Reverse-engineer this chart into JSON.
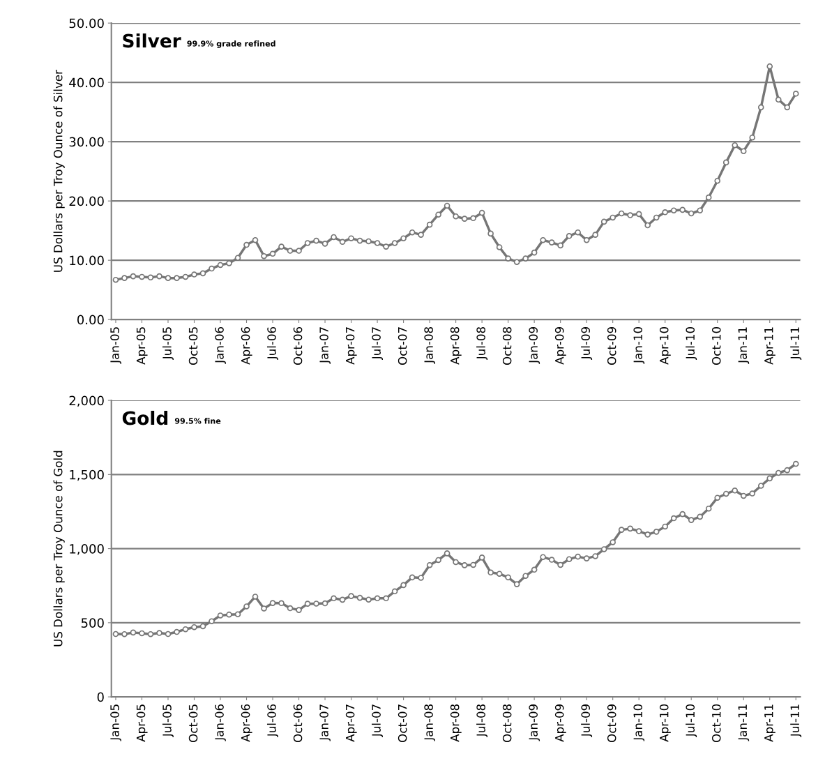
{
  "chart_data": [
    {
      "type": "line",
      "title": "Silver",
      "subtitle": "99.9% grade refined",
      "ylabel": "US Dollars per Troy Ounce of Silver",
      "categories": [
        "Jan-05",
        null,
        null,
        "Apr-05",
        null,
        null,
        "Jul-05",
        null,
        null,
        "Oct-05",
        null,
        null,
        "Jan-06",
        null,
        null,
        "Apr-06",
        null,
        null,
        "Jul-06",
        null,
        null,
        "Oct-06",
        null,
        null,
        "Jan-07",
        null,
        null,
        "Apr-07",
        null,
        null,
        "Jul-07",
        null,
        null,
        "Oct-07",
        null,
        null,
        "Jan-08",
        null,
        null,
        "Apr-08",
        null,
        null,
        "Jul-08",
        null,
        null,
        "Oct-08",
        null,
        null,
        "Jan-09",
        null,
        null,
        "Apr-09",
        null,
        null,
        "Jul-09",
        null,
        null,
        "Oct-09",
        null,
        null,
        "Jan-10",
        null,
        null,
        "Apr-10",
        null,
        null,
        "Jul-10",
        null,
        null,
        "Oct-10",
        null,
        null,
        "Jan-11",
        null,
        null,
        "Apr-11",
        null,
        null,
        "Jul-11"
      ],
      "series": [
        {
          "color": "#767676",
          "values": [
            6.7,
            7.0,
            7.3,
            7.2,
            7.1,
            7.3,
            7.0,
            7.0,
            7.2,
            7.6,
            7.8,
            8.6,
            9.2,
            9.5,
            10.4,
            12.6,
            13.4,
            10.7,
            11.1,
            12.3,
            11.6,
            11.6,
            12.9,
            13.3,
            12.8,
            13.9,
            13.1,
            13.7,
            13.3,
            13.2,
            12.9,
            12.3,
            12.9,
            13.7,
            14.7,
            14.3,
            16.0,
            17.7,
            19.2,
            17.4,
            17.0,
            17.1,
            18.0,
            14.5,
            12.2,
            10.3,
            9.7,
            10.3,
            11.3,
            13.4,
            13.0,
            12.5,
            14.1,
            14.7,
            13.4,
            14.3,
            16.5,
            17.2,
            17.9,
            17.6,
            17.8,
            15.9,
            17.2,
            18.1,
            18.4,
            18.5,
            17.9,
            18.4,
            20.6,
            23.4,
            26.5,
            29.4,
            28.4,
            30.7,
            35.8,
            42.7,
            37.1,
            35.8,
            38.1
          ]
        }
      ],
      "ylim": [
        0,
        50
      ],
      "yticks": [
        {
          "value": 0,
          "label": "0.00"
        },
        {
          "value": 10,
          "label": "10.00"
        },
        {
          "value": 20,
          "label": "20.00"
        },
        {
          "value": 30,
          "label": "30.00"
        },
        {
          "value": 40,
          "label": "40.00"
        },
        {
          "value": 50,
          "label": "50.00"
        }
      ],
      "grid": "y",
      "marker": "circle",
      "line_style": "solid"
    },
    {
      "type": "line",
      "title": "Gold",
      "subtitle": "99.5% fine",
      "ylabel": "US Dollars per Troy Ounce of Gold",
      "categories": [
        "Jan-05",
        null,
        null,
        "Apr-05",
        null,
        null,
        "Jul-05",
        null,
        null,
        "Oct-05",
        null,
        null,
        "Jan-06",
        null,
        null,
        "Apr-06",
        null,
        null,
        "Jul-06",
        null,
        null,
        "Oct-06",
        null,
        null,
        "Jan-07",
        null,
        null,
        "Apr-07",
        null,
        null,
        "Jul-07",
        null,
        null,
        "Oct-07",
        null,
        null,
        "Jan-08",
        null,
        null,
        "Apr-08",
        null,
        null,
        "Jul-08",
        null,
        null,
        "Oct-08",
        null,
        null,
        "Jan-09",
        null,
        null,
        "Apr-09",
        null,
        null,
        "Jul-09",
        null,
        null,
        "Oct-09",
        null,
        null,
        "Jan-10",
        null,
        null,
        "Apr-10",
        null,
        null,
        "Jul-10",
        null,
        null,
        "Oct-10",
        null,
        null,
        "Jan-11",
        null,
        null,
        "Apr-11",
        null,
        null,
        "Jul-11"
      ],
      "series": [
        {
          "color": "#767676",
          "values": [
            424,
            423,
            434,
            429,
            423,
            431,
            424,
            438,
            456,
            470,
            476,
            510,
            549,
            555,
            557,
            610,
            676,
            596,
            633,
            632,
            598,
            586,
            628,
            629,
            631,
            665,
            655,
            680,
            668,
            656,
            665,
            665,
            712,
            754,
            806,
            803,
            889,
            923,
            968,
            909,
            888,
            890,
            940,
            839,
            830,
            806,
            760,
            816,
            858,
            943,
            925,
            890,
            929,
            946,
            934,
            949,
            996,
            1043,
            1127,
            1135,
            1118,
            1095,
            1114,
            1149,
            1205,
            1233,
            1193,
            1215,
            1270,
            1343,
            1370,
            1392,
            1356,
            1372,
            1424,
            1474,
            1511,
            1529,
            1572
          ]
        }
      ],
      "ylim": [
        0,
        2000
      ],
      "yticks": [
        0,
        500,
        {
          "value": 1000,
          "label": "1,000"
        },
        {
          "value": 1500,
          "label": "1,500"
        },
        {
          "value": 2000,
          "label": "2,000"
        }
      ],
      "grid": "y",
      "marker": "circle",
      "line_style": "solid"
    }
  ]
}
